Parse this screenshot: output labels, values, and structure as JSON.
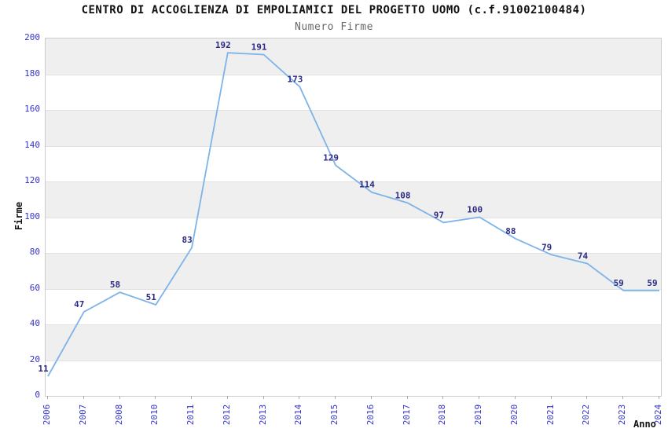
{
  "chart_data": {
    "type": "line",
    "title": "CENTRO DI ACCOGLIENZA DI EMPOLIAMICI DEL PROGETTO UOMO (c.f.91002100484)",
    "subtitle": "Numero Firme",
    "xlabel": "Anno",
    "ylabel": "Firme",
    "categories": [
      "2006",
      "2007",
      "2008",
      "2010",
      "2011",
      "2012",
      "2013",
      "2014",
      "2015",
      "2016",
      "2017",
      "2018",
      "2019",
      "2020",
      "2021",
      "2022",
      "2023",
      "2024"
    ],
    "values": [
      11,
      47,
      58,
      51,
      83,
      192,
      191,
      173,
      129,
      114,
      108,
      97,
      100,
      88,
      79,
      74,
      59,
      59
    ],
    "ylim": [
      0,
      200
    ],
    "ytick_step": 20,
    "legend": "none",
    "grid": "horizontal-alternating-bands",
    "data_labels": "above-points",
    "colors": {
      "line": "#7EB3E8",
      "tick_label": "#3333CC",
      "value_label": "#2B2B85",
      "band_gray": "#EFEFEF",
      "band_white": "#FFFFFF",
      "gridline": "#E2E2E2",
      "plot_border": "#CCCCCC",
      "title": "#111111",
      "subtitle": "#666666",
      "tick_mark": "#AAAAAA"
    }
  }
}
